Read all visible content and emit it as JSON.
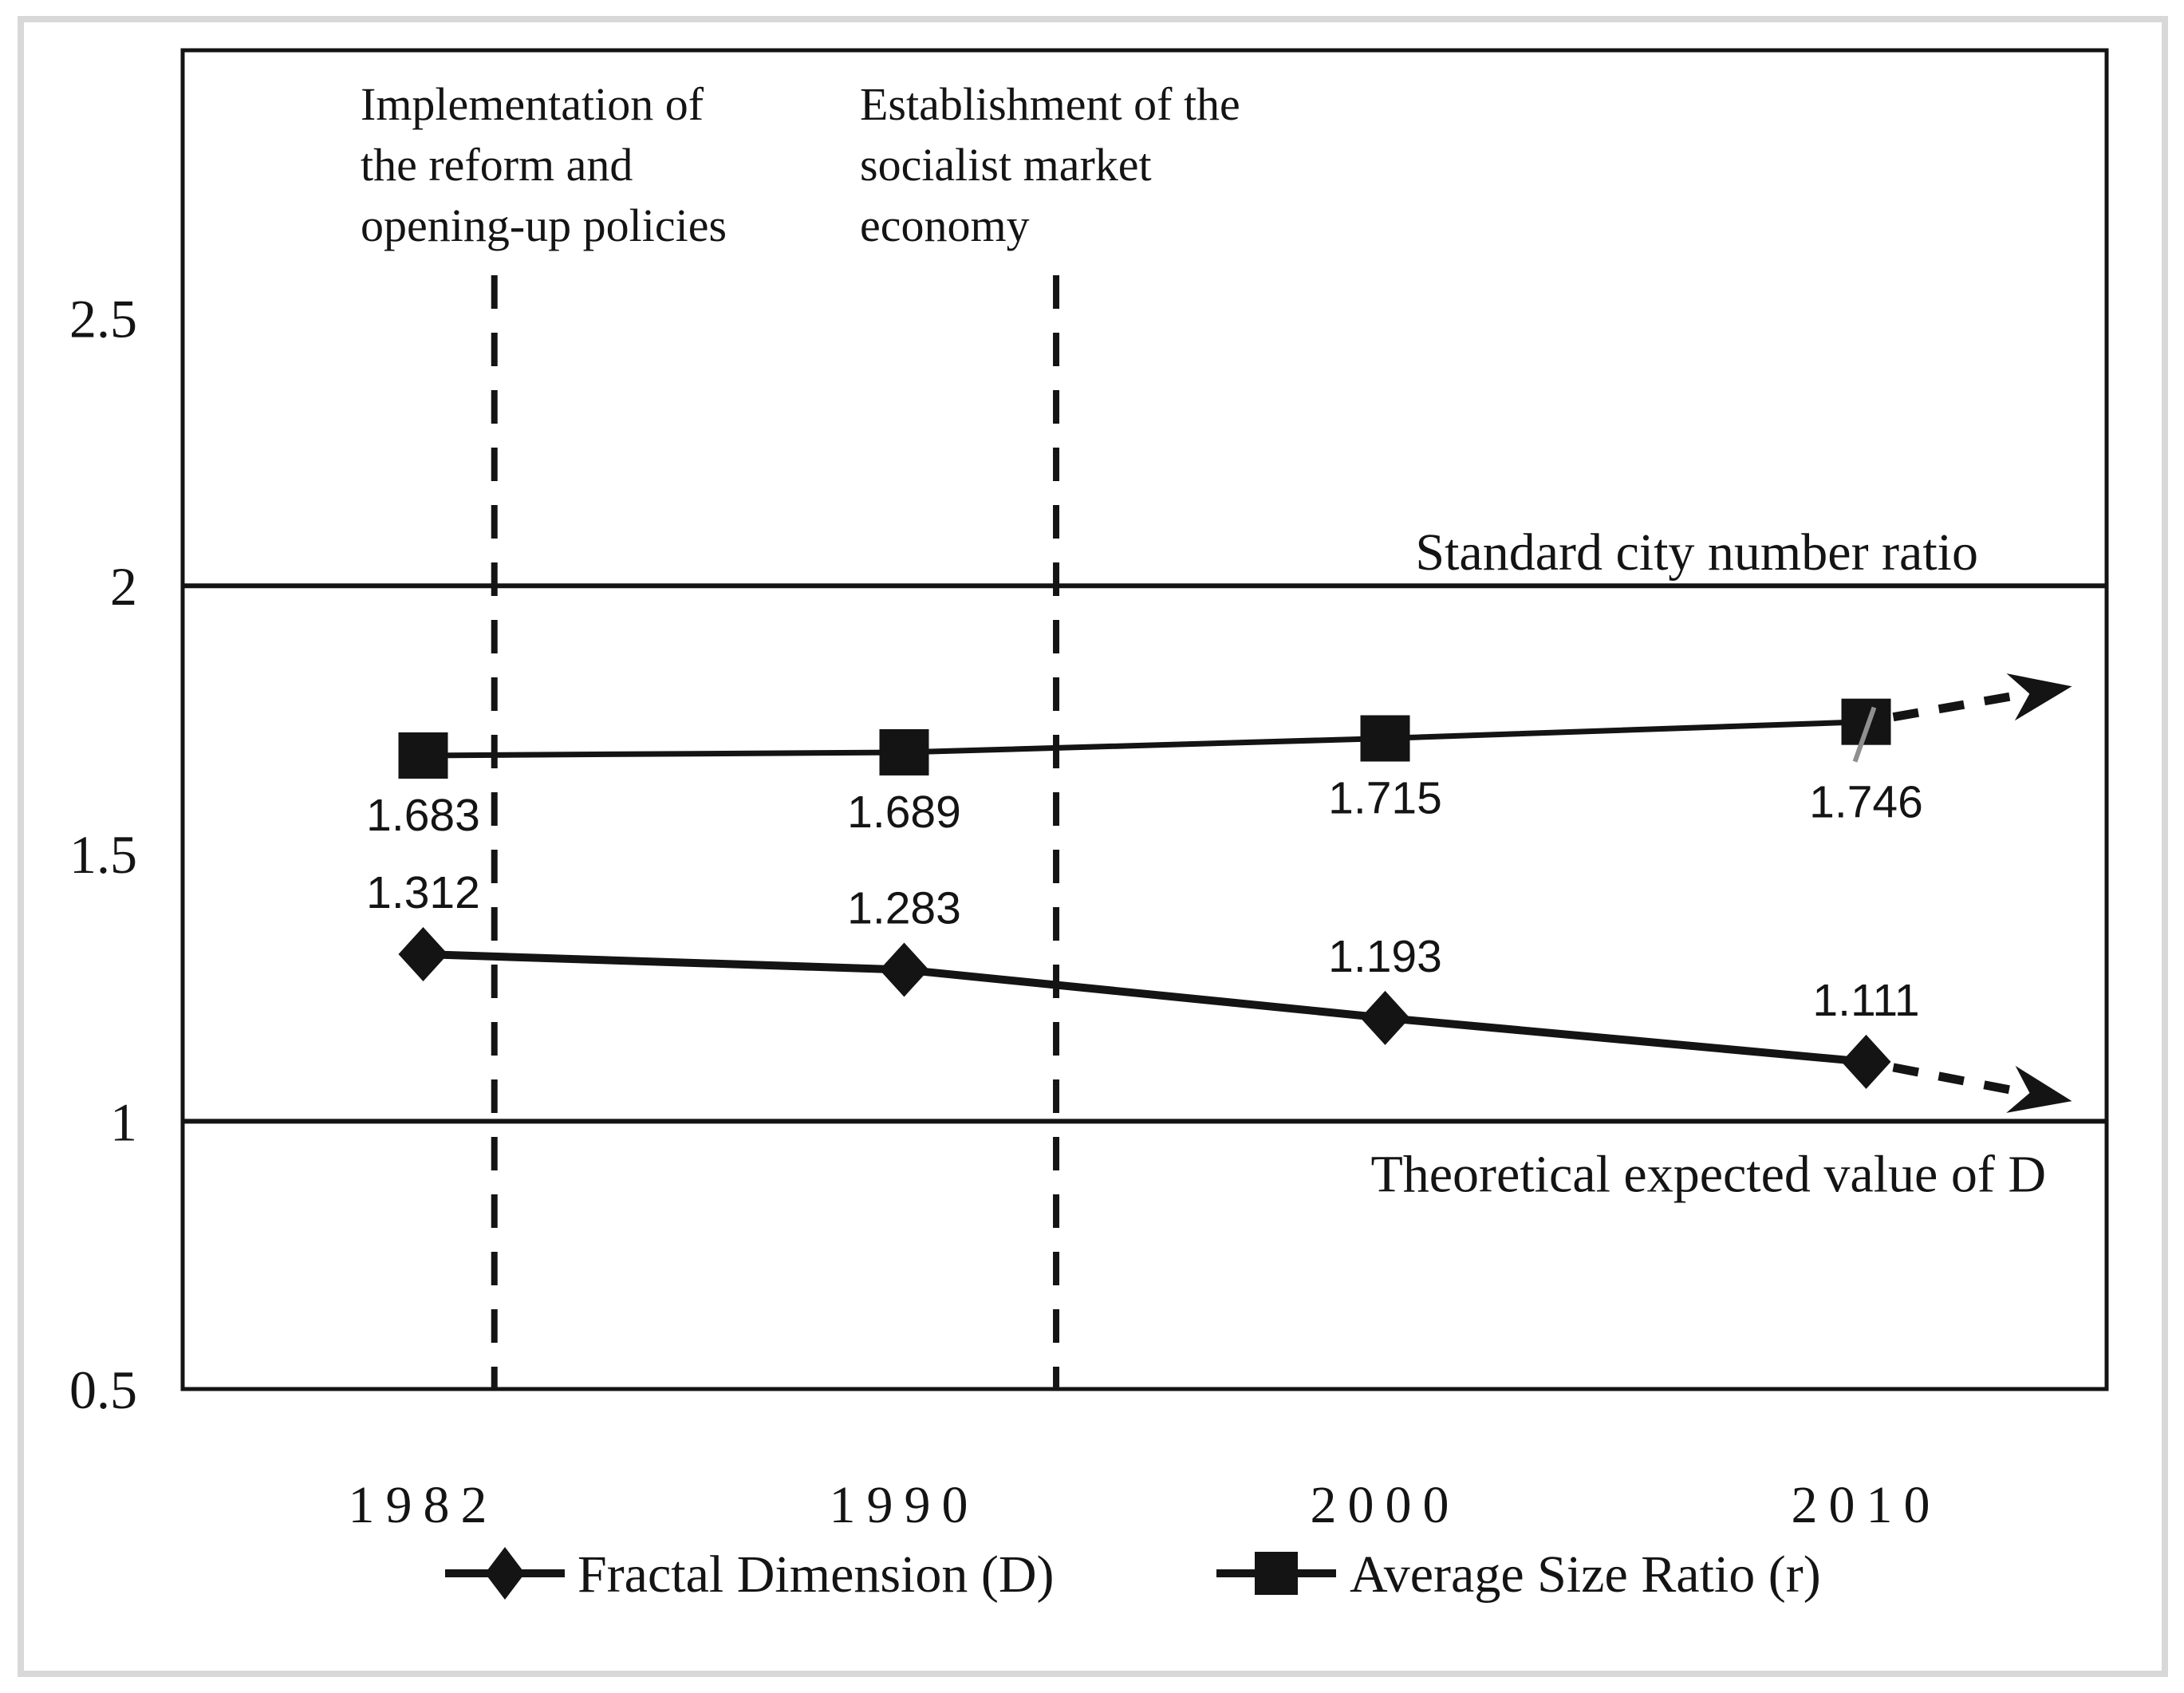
{
  "chart_data": {
    "type": "line",
    "categories": [
      "1982",
      "1990",
      "2000",
      "2010"
    ],
    "series": [
      {
        "name": "Fractal Dimension (D)",
        "marker": "diamond",
        "values": [
          1.312,
          1.283,
          1.193,
          1.111
        ],
        "labels": [
          "1.312",
          "1.283",
          "1.193",
          "1.111"
        ],
        "label_position": "above",
        "trend_arrow": "down"
      },
      {
        "name": "Average Size Ratio (r)",
        "marker": "square",
        "values": [
          1.683,
          1.689,
          1.715,
          1.746
        ],
        "labels": [
          "1.683",
          "1.689",
          "1.715",
          "1.746"
        ],
        "label_position": "below",
        "trend_arrow": "up"
      }
    ],
    "ylim": [
      0.5,
      3.0
    ],
    "yticks": {
      "values": [
        2.5,
        2,
        1.5,
        1,
        0.5
      ],
      "labels": [
        "2.5",
        "2",
        "1.5",
        "1",
        "0.5"
      ]
    },
    "grid": "off",
    "legend_position": "bottom-center",
    "reference_lines": [
      {
        "value": 2,
        "label": "Standard city number ratio",
        "label_side": "above"
      },
      {
        "value": 1,
        "label": "Theoretical expected value of D",
        "label_side": "below"
      }
    ],
    "event_lines": [
      {
        "x_frac": 0.162,
        "lines": [
          "Implementation of",
          "the reform and",
          "opening-up policies"
        ]
      },
      {
        "x_frac": 0.454,
        "lines": [
          "Establishment of the",
          "socialist market",
          "economy"
        ]
      }
    ],
    "colors": {
      "ink": "#141414",
      "leader": "#8f8f8f",
      "frame": "#d8d8d8",
      "background": "#ffffff"
    }
  }
}
